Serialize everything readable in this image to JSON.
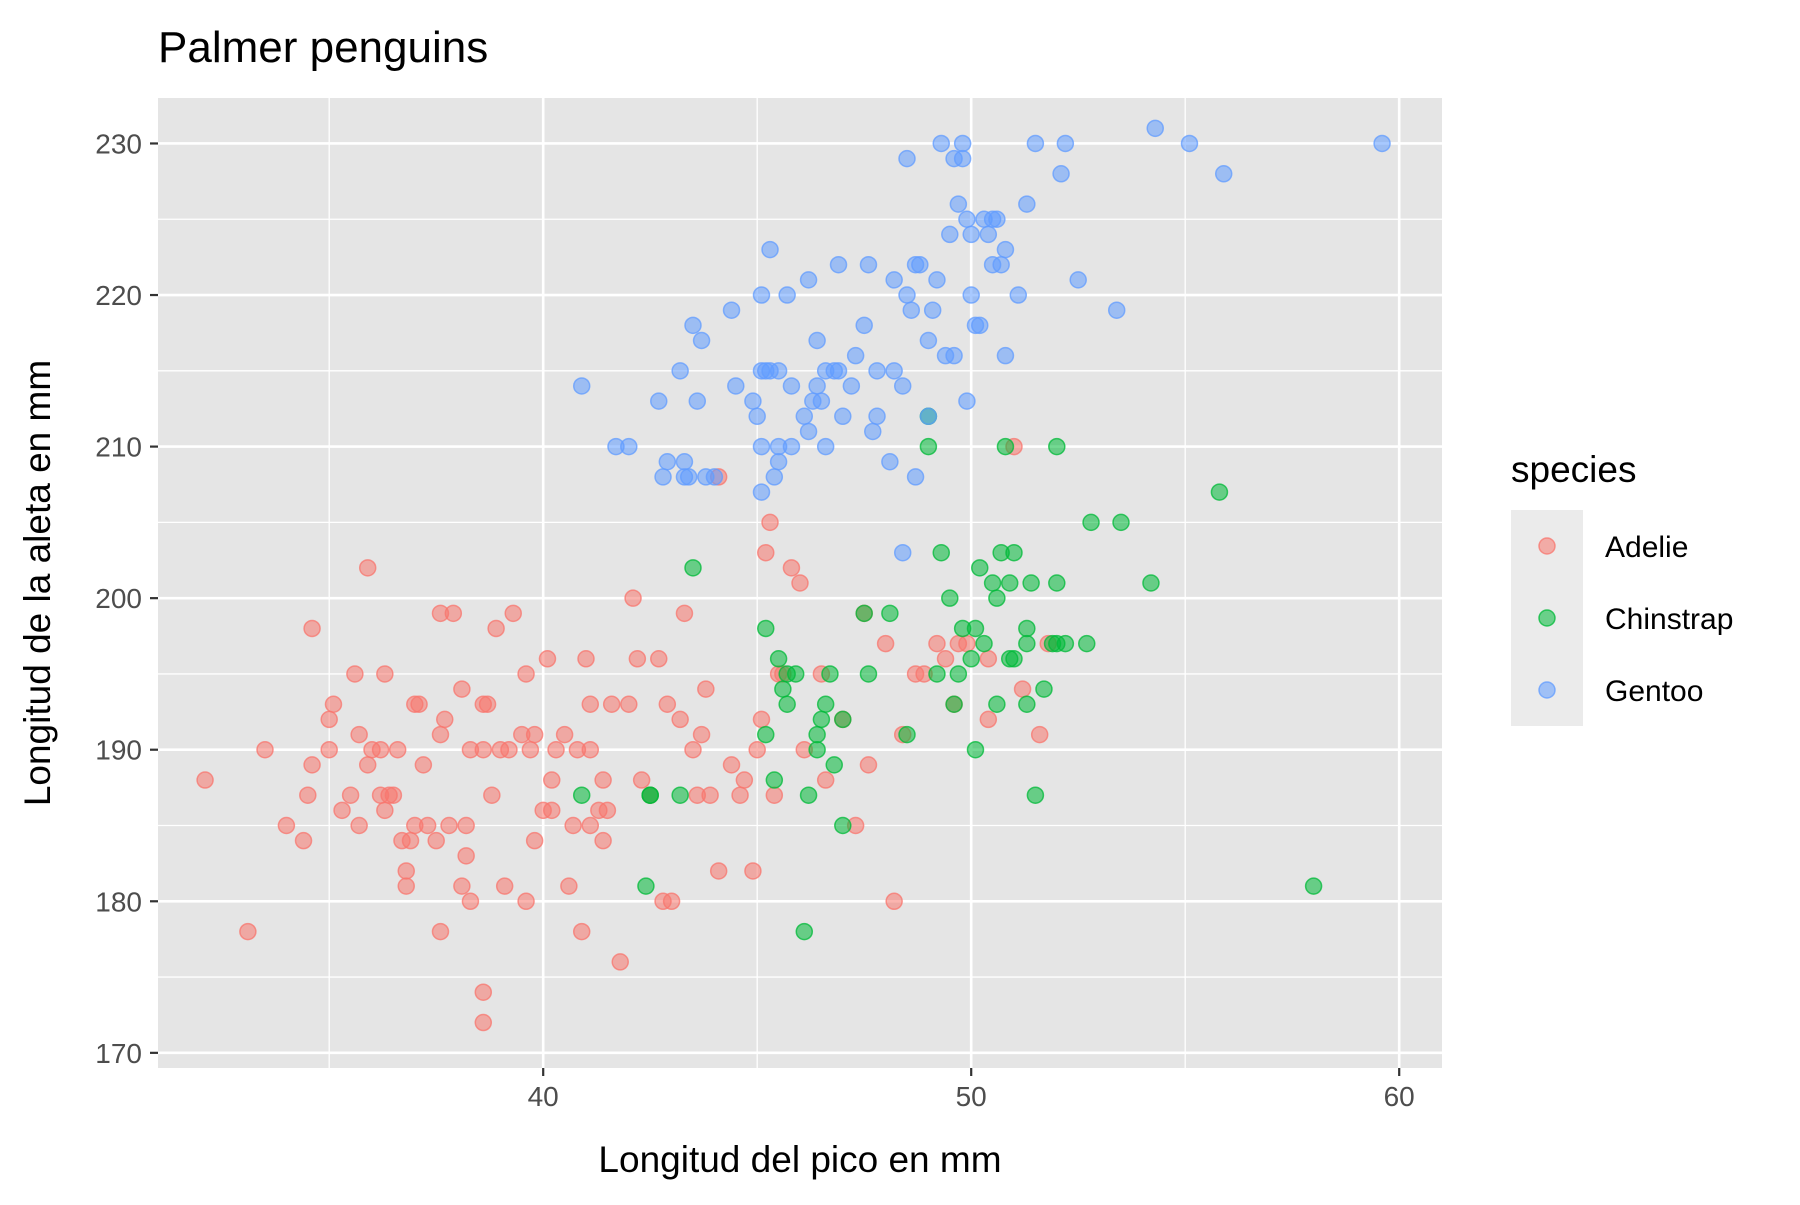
{
  "chart_data": {
    "type": "scatter",
    "title": "Palmer penguins",
    "xlabel": "Longitud del pico en mm",
    "ylabel": "Longitud de la aleta en mm",
    "xlim": [
      31,
      61
    ],
    "ylim": [
      169,
      233
    ],
    "x_ticks": [
      40,
      50,
      60
    ],
    "y_ticks": [
      170,
      180,
      190,
      200,
      210,
      220,
      230
    ],
    "grid": true,
    "legend": {
      "title": "species",
      "position": "right"
    },
    "series": [
      {
        "name": "Adelie",
        "color": "#F8766D",
        "points": [
          [
            32.1,
            188
          ],
          [
            33.1,
            178
          ],
          [
            33.5,
            190
          ],
          [
            34.0,
            185
          ],
          [
            34.4,
            184
          ],
          [
            34.5,
            187
          ],
          [
            34.6,
            198
          ],
          [
            34.6,
            189
          ],
          [
            35.0,
            192
          ],
          [
            35.1,
            193
          ],
          [
            35.0,
            190
          ],
          [
            35.3,
            186
          ],
          [
            35.5,
            187
          ],
          [
            35.6,
            195
          ],
          [
            35.7,
            191
          ],
          [
            35.7,
            185
          ],
          [
            35.9,
            189
          ],
          [
            35.9,
            202
          ],
          [
            36.0,
            190
          ],
          [
            36.2,
            190
          ],
          [
            36.2,
            187
          ],
          [
            36.3,
            195
          ],
          [
            36.3,
            186
          ],
          [
            36.4,
            187
          ],
          [
            36.5,
            187
          ],
          [
            36.6,
            190
          ],
          [
            36.7,
            184
          ],
          [
            36.8,
            182
          ],
          [
            36.8,
            181
          ],
          [
            36.9,
            184
          ],
          [
            37.0,
            185
          ],
          [
            37.0,
            193
          ],
          [
            37.1,
            193
          ],
          [
            37.2,
            189
          ],
          [
            37.3,
            185
          ],
          [
            37.5,
            184
          ],
          [
            37.6,
            199
          ],
          [
            37.6,
            191
          ],
          [
            37.6,
            178
          ],
          [
            37.7,
            192
          ],
          [
            37.8,
            185
          ],
          [
            37.9,
            199
          ],
          [
            38.1,
            181
          ],
          [
            38.1,
            194
          ],
          [
            38.2,
            185
          ],
          [
            38.2,
            183
          ],
          [
            38.3,
            190
          ],
          [
            38.3,
            180
          ],
          [
            38.6,
            174
          ],
          [
            38.6,
            193
          ],
          [
            38.6,
            172
          ],
          [
            38.7,
            193
          ],
          [
            38.6,
            190
          ],
          [
            38.8,
            187
          ],
          [
            39.0,
            190
          ],
          [
            39.1,
            181
          ],
          [
            38.9,
            198
          ],
          [
            39.2,
            190
          ],
          [
            39.3,
            199
          ],
          [
            39.5,
            191
          ],
          [
            39.6,
            195
          ],
          [
            39.6,
            180
          ],
          [
            39.7,
            190
          ],
          [
            39.8,
            191
          ],
          [
            39.8,
            184
          ],
          [
            40.0,
            186
          ],
          [
            40.1,
            196
          ],
          [
            40.2,
            186
          ],
          [
            40.2,
            188
          ],
          [
            40.3,
            190
          ],
          [
            40.5,
            191
          ],
          [
            40.6,
            181
          ],
          [
            40.7,
            185
          ],
          [
            40.8,
            190
          ],
          [
            40.9,
            178
          ],
          [
            41.1,
            190
          ],
          [
            41.0,
            196
          ],
          [
            41.1,
            185
          ],
          [
            41.3,
            186
          ],
          [
            41.1,
            193
          ],
          [
            41.4,
            188
          ],
          [
            41.5,
            186
          ],
          [
            41.6,
            193
          ],
          [
            41.4,
            184
          ],
          [
            41.8,
            176
          ],
          [
            42.0,
            193
          ],
          [
            42.1,
            200
          ],
          [
            42.2,
            196
          ],
          [
            42.3,
            188
          ],
          [
            42.5,
            187
          ],
          [
            42.7,
            196
          ],
          [
            42.8,
            180
          ],
          [
            42.9,
            193
          ],
          [
            43.0,
            180
          ],
          [
            43.2,
            192
          ],
          [
            43.3,
            199
          ],
          [
            43.5,
            190
          ],
          [
            43.6,
            187
          ],
          [
            43.7,
            191
          ],
          [
            43.8,
            194
          ],
          [
            43.9,
            187
          ],
          [
            44.1,
            208
          ],
          [
            44.1,
            182
          ],
          [
            44.4,
            189
          ],
          [
            44.6,
            187
          ],
          [
            44.7,
            188
          ],
          [
            44.9,
            182
          ],
          [
            45.0,
            190
          ],
          [
            45.1,
            192
          ],
          [
            45.2,
            203
          ],
          [
            45.3,
            205
          ],
          [
            45.4,
            187
          ],
          [
            45.5,
            195
          ],
          [
            45.6,
            195
          ],
          [
            45.8,
            202
          ],
          [
            46.0,
            201
          ],
          [
            46.1,
            190
          ],
          [
            46.5,
            195
          ],
          [
            46.6,
            188
          ],
          [
            47.0,
            192
          ],
          [
            47.3,
            185
          ],
          [
            47.5,
            199
          ],
          [
            47.6,
            189
          ],
          [
            48.0,
            197
          ],
          [
            48.2,
            180
          ],
          [
            48.4,
            191
          ],
          [
            48.7,
            195
          ],
          [
            48.9,
            195
          ],
          [
            49.2,
            197
          ],
          [
            49.4,
            196
          ],
          [
            49.6,
            193
          ],
          [
            49.7,
            197
          ],
          [
            49.9,
            197
          ],
          [
            50.4,
            196
          ],
          [
            50.4,
            192
          ],
          [
            51.0,
            210
          ],
          [
            51.2,
            194
          ],
          [
            51.6,
            191
          ],
          [
            51.8,
            197
          ]
        ]
      },
      {
        "name": "Chinstrap",
        "color": "#00BA38",
        "points": [
          [
            40.9,
            187
          ],
          [
            42.4,
            181
          ],
          [
            42.5,
            187
          ],
          [
            42.5,
            187
          ],
          [
            43.2,
            187
          ],
          [
            43.5,
            202
          ],
          [
            45.2,
            198
          ],
          [
            45.2,
            191
          ],
          [
            45.4,
            188
          ],
          [
            45.5,
            196
          ],
          [
            45.6,
            194
          ],
          [
            45.7,
            195
          ],
          [
            45.7,
            193
          ],
          [
            45.9,
            195
          ],
          [
            46.1,
            178
          ],
          [
            46.2,
            187
          ],
          [
            46.4,
            190
          ],
          [
            46.4,
            191
          ],
          [
            46.5,
            192
          ],
          [
            46.6,
            193
          ],
          [
            46.7,
            195
          ],
          [
            46.8,
            189
          ],
          [
            47.0,
            192
          ],
          [
            47.0,
            185
          ],
          [
            47.5,
            199
          ],
          [
            47.6,
            195
          ],
          [
            48.1,
            199
          ],
          [
            48.5,
            191
          ],
          [
            49.0,
            212
          ],
          [
            49.0,
            210
          ],
          [
            49.2,
            195
          ],
          [
            49.3,
            203
          ],
          [
            49.5,
            200
          ],
          [
            49.6,
            193
          ],
          [
            49.7,
            195
          ],
          [
            49.8,
            198
          ],
          [
            50.0,
            196
          ],
          [
            50.1,
            198
          ],
          [
            50.1,
            190
          ],
          [
            50.2,
            202
          ],
          [
            50.3,
            197
          ],
          [
            50.5,
            201
          ],
          [
            50.6,
            200
          ],
          [
            50.6,
            193
          ],
          [
            50.7,
            203
          ],
          [
            50.8,
            210
          ],
          [
            50.9,
            196
          ],
          [
            50.9,
            201
          ],
          [
            51.0,
            196
          ],
          [
            51.0,
            203
          ],
          [
            51.3,
            198
          ],
          [
            51.3,
            197
          ],
          [
            51.3,
            193
          ],
          [
            51.4,
            201
          ],
          [
            51.5,
            187
          ],
          [
            51.7,
            194
          ],
          [
            51.9,
            197
          ],
          [
            52.0,
            210
          ],
          [
            52.0,
            201
          ],
          [
            52.0,
            197
          ],
          [
            52.2,
            197
          ],
          [
            52.7,
            197
          ],
          [
            52.8,
            205
          ],
          [
            53.5,
            205
          ],
          [
            54.2,
            201
          ],
          [
            55.8,
            207
          ],
          [
            58.0,
            181
          ]
        ]
      },
      {
        "name": "Gentoo",
        "color": "#619CFF",
        "points": [
          [
            40.9,
            214
          ],
          [
            41.7,
            210
          ],
          [
            42.0,
            210
          ],
          [
            42.7,
            213
          ],
          [
            42.8,
            208
          ],
          [
            42.9,
            209
          ],
          [
            43.2,
            215
          ],
          [
            43.3,
            208
          ],
          [
            43.3,
            209
          ],
          [
            43.4,
            208
          ],
          [
            43.5,
            218
          ],
          [
            43.6,
            213
          ],
          [
            43.7,
            217
          ],
          [
            43.8,
            208
          ],
          [
            44.0,
            208
          ],
          [
            44.4,
            219
          ],
          [
            44.5,
            214
          ],
          [
            44.9,
            213
          ],
          [
            45.0,
            212
          ],
          [
            45.1,
            215
          ],
          [
            45.1,
            220
          ],
          [
            45.1,
            210
          ],
          [
            45.1,
            207
          ],
          [
            45.2,
            215
          ],
          [
            45.3,
            215
          ],
          [
            45.3,
            223
          ],
          [
            45.4,
            208
          ],
          [
            45.5,
            210
          ],
          [
            45.5,
            209
          ],
          [
            45.5,
            215
          ],
          [
            45.7,
            220
          ],
          [
            45.8,
            210
          ],
          [
            45.8,
            214
          ],
          [
            46.1,
            212
          ],
          [
            46.2,
            211
          ],
          [
            46.2,
            221
          ],
          [
            46.3,
            213
          ],
          [
            46.4,
            214
          ],
          [
            46.5,
            213
          ],
          [
            46.6,
            215
          ],
          [
            46.6,
            210
          ],
          [
            46.8,
            215
          ],
          [
            46.9,
            222
          ],
          [
            47.2,
            214
          ],
          [
            47.3,
            216
          ],
          [
            47.5,
            218
          ],
          [
            47.6,
            222
          ],
          [
            47.7,
            211
          ],
          [
            47.8,
            215
          ],
          [
            48.1,
            209
          ],
          [
            48.2,
            221
          ],
          [
            48.2,
            215
          ],
          [
            48.4,
            214
          ],
          [
            48.5,
            220
          ],
          [
            48.6,
            219
          ],
          [
            48.7,
            222
          ],
          [
            48.7,
            208
          ],
          [
            48.8,
            222
          ],
          [
            48.4,
            203
          ],
          [
            49.0,
            217
          ],
          [
            49.0,
            212
          ],
          [
            49.1,
            219
          ],
          [
            49.2,
            221
          ],
          [
            49.3,
            230
          ],
          [
            49.4,
            216
          ],
          [
            49.5,
            224
          ],
          [
            49.6,
            216
          ],
          [
            49.6,
            229
          ],
          [
            49.8,
            230
          ],
          [
            49.8,
            229
          ],
          [
            49.9,
            213
          ],
          [
            50.0,
            224
          ],
          [
            50.0,
            220
          ],
          [
            50.1,
            218
          ],
          [
            50.2,
            218
          ],
          [
            50.4,
            224
          ],
          [
            50.5,
            222
          ],
          [
            50.5,
            225
          ],
          [
            50.7,
            222
          ],
          [
            50.8,
            216
          ],
          [
            50.8,
            223
          ],
          [
            51.1,
            220
          ],
          [
            51.5,
            230
          ],
          [
            51.3,
            226
          ],
          [
            52.1,
            228
          ],
          [
            52.2,
            230
          ],
          [
            52.5,
            221
          ],
          [
            53.4,
            219
          ],
          [
            54.3,
            231
          ],
          [
            55.1,
            230
          ],
          [
            55.9,
            228
          ],
          [
            59.6,
            230
          ],
          [
            48.5,
            229
          ],
          [
            49.9,
            225
          ],
          [
            49.7,
            226
          ],
          [
            50.3,
            225
          ],
          [
            46.4,
            217
          ],
          [
            47.0,
            212
          ],
          [
            46.9,
            215
          ],
          [
            47.8,
            212
          ],
          [
            50.6,
            225
          ]
        ]
      }
    ]
  }
}
